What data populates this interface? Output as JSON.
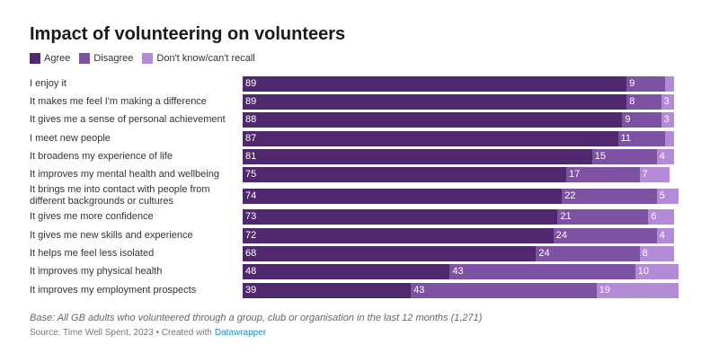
{
  "chart_data": {
    "type": "stacked-bar",
    "title": "Impact of volunteering on volunteers",
    "categories": [
      "I enjoy it",
      "It makes me feel I'm making a difference",
      "It gives me a sense of personal achievement",
      "I meet new people",
      "It broadens my experience of life",
      "It improves my mental health and wellbeing",
      "It brings me into contact with people from different backgrounds or cultures",
      "It gives me more confidence",
      "It gives me new skills and experience",
      "It helps me feel less isolated",
      "It improves my physical health",
      "It improves my employment prospects"
    ],
    "series": [
      {
        "name": "Agree",
        "color": "#50286e",
        "values": [
          89,
          89,
          88,
          87,
          81,
          75,
          74,
          73,
          72,
          68,
          48,
          39
        ]
      },
      {
        "name": "Disagree",
        "color": "#7d52a3",
        "values": [
          9,
          8,
          9,
          11,
          15,
          17,
          22,
          21,
          24,
          24,
          43,
          43
        ]
      },
      {
        "name": "Don't know/can't recall",
        "color": "#b28ad6",
        "values": [
          2,
          3,
          3,
          2,
          4,
          7,
          5,
          6,
          4,
          8,
          10,
          19
        ]
      }
    ],
    "xlim": [
      0,
      100
    ],
    "footnote": "Base: All GB adults who volunteered through a group, club or organisation in the last 12 months (1,271)",
    "source": "Source: Time Well Spent, 2023 • Created with",
    "credit": "Datawrapper"
  }
}
